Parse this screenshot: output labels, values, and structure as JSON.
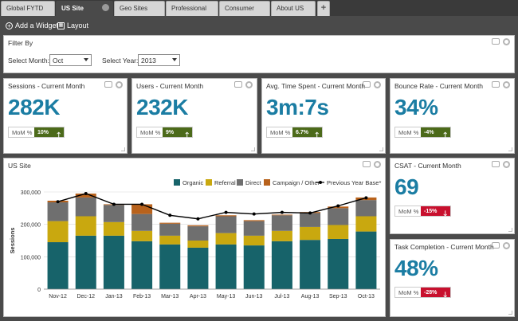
{
  "tabs": [
    {
      "label": "Global FYTD"
    },
    {
      "label": "US Site"
    },
    {
      "label": "Geo Sites"
    },
    {
      "label": "Professional"
    },
    {
      "label": "Consumer"
    },
    {
      "label": "About US"
    },
    {
      "label": "+"
    }
  ],
  "toolbar": {
    "add_widget": "Add a Widget",
    "layout": "Layout"
  },
  "filter": {
    "title": "Filter By",
    "month_label": "Select Month:",
    "month_value": "Oct",
    "year_label": "Select Year:",
    "year_value": "2013"
  },
  "kpis": [
    {
      "title": "Sessions - Current Month",
      "value": "282K",
      "mom_label": "MoM %",
      "change": "10%",
      "direction": "up"
    },
    {
      "title": "Users - Current Month",
      "value": "232K",
      "mom_label": "MoM %",
      "change": "9%",
      "direction": "up"
    },
    {
      "title": "Avg. Time Spent - Current Month",
      "value": "3m:7s",
      "mom_label": "MoM %",
      "change": "6.7%",
      "direction": "up"
    },
    {
      "title": "Bounce Rate - Current Month",
      "value": "34%",
      "mom_label": "MoM %",
      "change": "-4%",
      "direction": "up"
    },
    {
      "title": "CSAT - Current Month",
      "value": "69",
      "mom_label": "MoM %",
      "change": "-15%",
      "direction": "down"
    },
    {
      "title": "Task Completion - Current Month",
      "value": "48%",
      "mom_label": "MoM %",
      "change": "-28%",
      "direction": "down"
    }
  ],
  "colors": {
    "accent": "#1b7da3",
    "up": "#4c6a1a",
    "down": "#c8102e",
    "organic": "#17636a",
    "referral": "#c9a80f",
    "direct": "#6f6f6f",
    "campaign": "#b8621c",
    "line": "#000000"
  },
  "chart_data": {
    "type": "bar",
    "title": "US Site",
    "ylabel": "Sessions",
    "ylim": [
      0,
      300000
    ],
    "yticks": [
      0,
      100000,
      200000,
      300000
    ],
    "ytick_labels": [
      "0",
      "100,000",
      "200,000",
      "300,000"
    ],
    "categories": [
      "Nov-12",
      "Dec-12",
      "Jan-13",
      "Feb-13",
      "Mar-13",
      "Apr-13",
      "May-13",
      "Jun-13",
      "Jul-13",
      "Aug-13",
      "Sep-13",
      "Oct-13"
    ],
    "series": [
      {
        "name": "Organic",
        "values": [
          145000,
          165000,
          165000,
          148000,
          138000,
          128000,
          138000,
          135000,
          148000,
          152000,
          155000,
          178000
        ]
      },
      {
        "name": "Referral",
        "values": [
          65000,
          60000,
          42000,
          32000,
          27000,
          22000,
          35000,
          30000,
          32000,
          40000,
          43000,
          47000
        ]
      },
      {
        "name": "Direct",
        "values": [
          58000,
          58000,
          53000,
          52000,
          37000,
          44000,
          52000,
          45000,
          48000,
          43000,
          52000,
          50000
        ]
      },
      {
        "name": "Campaign / Other",
        "values": [
          5000,
          12000,
          2000,
          30000,
          3000,
          3000,
          3000,
          3000,
          2000,
          3000,
          5000,
          8000
        ]
      },
      {
        "name": "Previous Year Base*",
        "type": "line",
        "values": [
          270000,
          295000,
          262000,
          262000,
          228000,
          217000,
          237000,
          232000,
          237000,
          235000,
          257000,
          282000
        ]
      }
    ],
    "legend_position": "top-right",
    "grid": "horizontal"
  }
}
